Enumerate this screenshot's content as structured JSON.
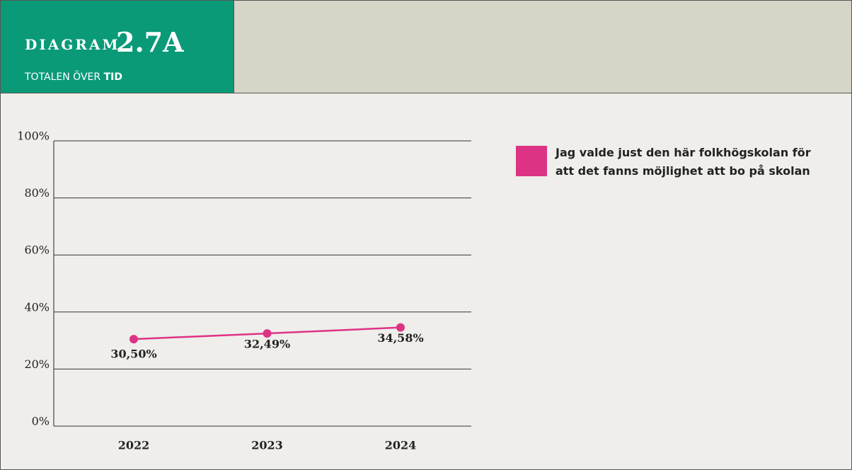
{
  "header": {
    "label": "DIAGRAM",
    "number": "2.7A",
    "subtitle": "TOTALEN ÖVER",
    "subtitle_bold": "TID"
  },
  "chart_data": {
    "type": "line",
    "categories": [
      "2022",
      "2023",
      "2024"
    ],
    "series": [
      {
        "name": "Jag valde just den här folkhögskolan för att det fanns möjlighet att bo på skolan",
        "color": "#dd3385",
        "values": [
          30.5,
          32.49,
          34.58
        ],
        "value_labels": [
          "30,50%",
          "32,49%",
          "34,58%"
        ]
      }
    ],
    "ylim": [
      0,
      100
    ],
    "yticks": [
      {
        "value": 0,
        "label": "0%"
      },
      {
        "value": 20,
        "label": "20%"
      },
      {
        "value": 40,
        "label": "40%"
      },
      {
        "value": 60,
        "label": "60%"
      },
      {
        "value": 80,
        "label": "80%"
      },
      {
        "value": 100,
        "label": "100%"
      }
    ],
    "grid": true,
    "legend": "right"
  }
}
